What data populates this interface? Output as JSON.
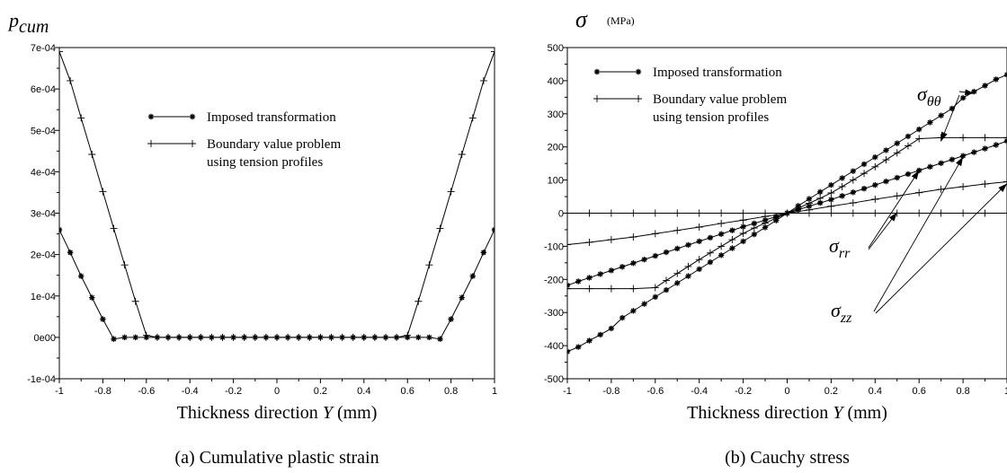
{
  "chart_data": [
    {
      "type": "line",
      "title": "",
      "ylabel": "p",
      "ylabel_sub": "cum",
      "xlabel_pre": "Thickness direction ",
      "xlabel_var": "Y",
      "xlabel_post": " (mm)",
      "caption": "(a) Cumulative plastic strain",
      "xlim": [
        -1,
        1
      ],
      "ylim": [
        -0.0001,
        0.0007
      ],
      "xticks": [
        -1,
        -0.8,
        -0.6,
        -0.4,
        -0.2,
        0,
        0.2,
        0.4,
        0.6,
        0.8,
        1
      ],
      "xtick_labels": [
        "-1",
        "-0.8",
        "-0.6",
        "-0.4",
        "-0.2",
        "0",
        "0.2",
        "0.4",
        "0.6",
        "0.8",
        "1"
      ],
      "yticks": [
        -0.0001,
        0,
        0.0001,
        0.0002,
        0.0003,
        0.0004,
        0.0005,
        0.0006,
        0.0007
      ],
      "ytick_labels": [
        "-1e-04",
        "0e00",
        "1e-04",
        "2e-04",
        "3e-04",
        "4e-04",
        "5e-04",
        "6e-04",
        "7e-04"
      ],
      "legend": [
        {
          "label": "Imposed transformation",
          "marker": "star"
        },
        {
          "label": "Boundary value problem",
          "label2": "using tension profiles",
          "marker": "plus"
        }
      ],
      "series": [
        {
          "name": "Imposed transformation",
          "marker": "star",
          "x": [
            -1,
            -0.95,
            -0.9,
            -0.85,
            -0.8,
            -0.75,
            -0.7,
            -0.65,
            -0.6,
            -0.55,
            -0.5,
            -0.45,
            -0.4,
            -0.35,
            -0.3,
            -0.25,
            -0.2,
            -0.15,
            -0.1,
            -0.05,
            0,
            0.05,
            0.1,
            0.15,
            0.2,
            0.25,
            0.3,
            0.35,
            0.4,
            0.45,
            0.5,
            0.55,
            0.6,
            0.65,
            0.7,
            0.75,
            0.8,
            0.85,
            0.9,
            0.95,
            1
          ],
          "y": [
            0.00026,
            0.000205,
            0.000148,
            9.6e-05,
            4.4e-05,
            -4e-06,
            0,
            0,
            0,
            0,
            0,
            0,
            0,
            0,
            0,
            0,
            0,
            0,
            0,
            0,
            0,
            0,
            0,
            0,
            0,
            0,
            0,
            0,
            0,
            0,
            0,
            0,
            0,
            0,
            0,
            -4e-06,
            4.4e-05,
            9.6e-05,
            0.000148,
            0.000205,
            0.00026
          ]
        },
        {
          "name": "Boundary value problem using tension profiles",
          "marker": "plus",
          "x": [
            -1,
            -0.95,
            -0.9,
            -0.85,
            -0.8,
            -0.75,
            -0.7,
            -0.65,
            -0.6,
            -0.55,
            -0.5,
            -0.45,
            -0.4,
            -0.35,
            -0.3,
            -0.25,
            -0.2,
            -0.15,
            -0.1,
            -0.05,
            0,
            0.05,
            0.1,
            0.15,
            0.2,
            0.25,
            0.3,
            0.35,
            0.4,
            0.45,
            0.5,
            0.55,
            0.6,
            0.65,
            0.7,
            0.75,
            0.8,
            0.85,
            0.9,
            0.95,
            1
          ],
          "y": [
            0.00069,
            0.00062,
            0.00053,
            0.000442,
            0.000352,
            0.000263,
            0.000175,
            8.7e-05,
            5e-06,
            0,
            0,
            0,
            0,
            0,
            0,
            0,
            0,
            0,
            0,
            0,
            0,
            0,
            0,
            0,
            0,
            0,
            0,
            0,
            0,
            0,
            0,
            0,
            5e-06,
            8.7e-05,
            0.000175,
            0.000263,
            0.000352,
            0.000442,
            0.00053,
            0.00062,
            0.00069
          ]
        }
      ]
    },
    {
      "type": "line",
      "title": "",
      "ylabel": "σ",
      "ylabel_unit": "(MPa)",
      "xlabel_pre": "Thickness direction ",
      "xlabel_var": "Y",
      "xlabel_post": " (mm)",
      "caption": "(b) Cauchy stress",
      "xlim": [
        -1,
        1
      ],
      "ylim": [
        -500,
        500
      ],
      "xticks": [
        -1,
        -0.8,
        -0.6,
        -0.4,
        -0.2,
        0,
        0.2,
        0.4,
        0.6,
        0.8,
        1
      ],
      "xtick_labels": [
        "-1",
        "-0.8",
        "-0.6",
        "-0.4",
        "-0.2",
        "0",
        "0.2",
        "0.4",
        "0.6",
        "0.8",
        "1"
      ],
      "yticks": [
        -500,
        -400,
        -300,
        -200,
        -100,
        0,
        100,
        200,
        300,
        400,
        500
      ],
      "ytick_labels": [
        "-500",
        "-400",
        "-300",
        "-200",
        "-100",
        "0",
        "100",
        "200",
        "300",
        "400",
        "500"
      ],
      "legend": [
        {
          "label": "Imposed transformation",
          "marker": "star"
        },
        {
          "label": "Boundary value problem",
          "label2": "using tension profiles",
          "marker": "plus"
        }
      ],
      "annotations": [
        {
          "symbol": "σ",
          "sub": "θθ"
        },
        {
          "symbol": "σ",
          "sub": "rr"
        },
        {
          "symbol": "σ",
          "sub": "zz"
        }
      ],
      "series": [
        {
          "name": "σθθ imposed transformation",
          "marker": "star",
          "x": [
            -1,
            -0.95,
            -0.9,
            -0.85,
            -0.8,
            -0.75,
            -0.7,
            -0.65,
            -0.6,
            -0.55,
            -0.5,
            -0.45,
            -0.4,
            -0.35,
            -0.3,
            -0.25,
            -0.2,
            -0.15,
            -0.1,
            -0.05,
            0,
            0.05,
            0.1,
            0.15,
            0.2,
            0.25,
            0.3,
            0.35,
            0.4,
            0.45,
            0.5,
            0.55,
            0.6,
            0.65,
            0.7,
            0.75,
            0.8,
            0.85,
            0.9,
            0.95,
            1
          ],
          "y": [
            -418,
            -404,
            -385,
            -367,
            -348,
            -316,
            -295,
            -274,
            -253,
            -232,
            -211,
            -190,
            -169,
            -148,
            -127,
            -106,
            -85,
            -64,
            -43,
            -22,
            0,
            22,
            43,
            64,
            85,
            106,
            127,
            148,
            169,
            190,
            211,
            232,
            253,
            274,
            295,
            316,
            348,
            367,
            385,
            404,
            418
          ]
        },
        {
          "name": "σrr imposed transformation",
          "marker": "star",
          "x": [
            -1,
            -0.95,
            -0.9,
            -0.85,
            -0.8,
            -0.75,
            -0.7,
            -0.65,
            -0.6,
            -0.55,
            -0.5,
            -0.45,
            -0.4,
            -0.35,
            -0.3,
            -0.25,
            -0.2,
            -0.15,
            -0.1,
            -0.05,
            0,
            0.05,
            0.1,
            0.15,
            0.2,
            0.25,
            0.3,
            0.35,
            0.4,
            0.45,
            0.5,
            0.55,
            0.6,
            0.65,
            0.7,
            0.75,
            0.8,
            0.85,
            0.9,
            0.95,
            1
          ],
          "y": [
            -218,
            -206,
            -195,
            -184,
            -173,
            -162,
            -151,
            -140,
            -129,
            -118,
            -107,
            -96,
            -85,
            -74,
            -63,
            -52,
            -41,
            -31,
            -21,
            -10,
            0,
            10,
            21,
            31,
            41,
            52,
            63,
            74,
            85,
            96,
            107,
            118,
            129,
            140,
            151,
            162,
            173,
            184,
            195,
            206,
            218
          ]
        },
        {
          "name": "σθθ boundary value problem",
          "marker": "plus",
          "x": [
            -1,
            -0.9,
            -0.8,
            -0.7,
            -0.6,
            -0.55,
            -0.5,
            -0.45,
            -0.4,
            -0.35,
            -0.3,
            -0.25,
            -0.2,
            -0.15,
            -0.1,
            -0.05,
            0,
            0.05,
            0.1,
            0.15,
            0.2,
            0.25,
            0.3,
            0.35,
            0.4,
            0.45,
            0.5,
            0.55,
            0.6,
            0.7,
            0.8,
            0.9,
            1
          ],
          "y": [
            -228,
            -228,
            -228,
            -228,
            -225,
            -203,
            -182,
            -161,
            -140,
            -120,
            -100,
            -80,
            -61,
            -45,
            -30,
            -15,
            0,
            15,
            30,
            45,
            61,
            80,
            100,
            120,
            140,
            161,
            182,
            203,
            225,
            228,
            228,
            228,
            228
          ]
        },
        {
          "name": "σrr boundary value problem",
          "marker": "plus",
          "x": [
            -1,
            -0.9,
            -0.8,
            -0.7,
            -0.6,
            -0.5,
            -0.4,
            -0.3,
            -0.2,
            -0.1,
            0,
            0.1,
            0.2,
            0.3,
            0.4,
            0.5,
            0.6,
            0.7,
            0.8,
            0.9,
            1
          ],
          "y": [
            -95,
            -88,
            -80,
            -72,
            -62,
            -52,
            -42,
            -31,
            -21,
            -10,
            0,
            10,
            21,
            31,
            42,
            52,
            62,
            72,
            80,
            88,
            95
          ]
        },
        {
          "name": "σzz boundary value problem",
          "marker": "plus",
          "x": [
            -1,
            -0.9,
            -0.8,
            -0.7,
            -0.6,
            -0.5,
            -0.4,
            -0.3,
            -0.2,
            -0.1,
            0,
            0.1,
            0.2,
            0.3,
            0.4,
            0.5,
            0.6,
            0.7,
            0.8,
            0.9,
            1
          ],
          "y": [
            0,
            0,
            0,
            0,
            0,
            0,
            0,
            0,
            0,
            0,
            0,
            0,
            0,
            0,
            0,
            0,
            0,
            0,
            0,
            0,
            0
          ]
        }
      ]
    }
  ]
}
